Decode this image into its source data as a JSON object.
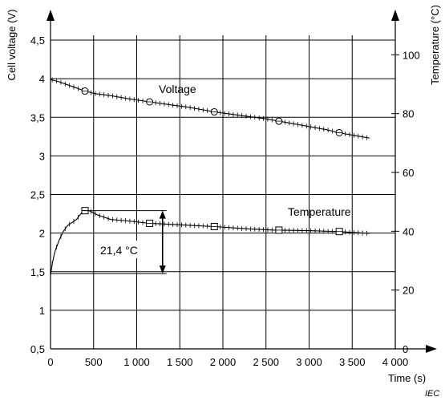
{
  "chart_data": {
    "type": "line",
    "x_axis": {
      "label": "Time  (s)",
      "range": [
        0,
        4000
      ],
      "ticks": [
        0,
        500,
        1000,
        1500,
        2000,
        2500,
        3000,
        3500,
        4000
      ],
      "tick_labels": [
        "0",
        "500",
        "1 000",
        "1 500",
        "2 000",
        "2 500",
        "3 000",
        "3 500",
        "4 000"
      ]
    },
    "y_axis_left": {
      "label": "Cell voltage  (V)",
      "range": [
        0.5,
        4.5
      ],
      "ticks": [
        0.5,
        1,
        1.5,
        2,
        2.5,
        3,
        3.5,
        4,
        4.5
      ],
      "tick_labels": [
        "0,5",
        "1",
        "1,5",
        "2",
        "2,5",
        "3",
        "3,5",
        "4",
        "4,5"
      ]
    },
    "y_axis_right": {
      "label": "Temperature  (°C)",
      "range": [
        0,
        105
      ],
      "ticks": [
        0,
        20,
        40,
        60,
        80,
        100
      ],
      "tick_labels": [
        "0",
        "20",
        "40",
        "60",
        "80",
        "100"
      ]
    },
    "grid": true,
    "series": [
      {
        "name": "Voltage",
        "axis": "left",
        "marker": "circle",
        "x": [
          0,
          100,
          200,
          300,
          400,
          500,
          700,
          900,
          1150,
          1400,
          1600,
          1900,
          2100,
          2300,
          2500,
          2650,
          2800,
          3000,
          3200,
          3350,
          3500,
          3700
        ],
        "y": [
          3.99,
          3.96,
          3.92,
          3.88,
          3.84,
          3.81,
          3.78,
          3.74,
          3.7,
          3.66,
          3.63,
          3.57,
          3.54,
          3.51,
          3.48,
          3.45,
          3.42,
          3.38,
          3.34,
          3.3,
          3.27,
          3.23
        ],
        "marker_x": [
          400,
          1150,
          1900,
          2650,
          3350
        ]
      },
      {
        "name": "Temperature",
        "axis": "right",
        "marker": "square",
        "x": [
          0,
          20,
          50,
          100,
          150,
          200,
          300,
          380,
          450,
          550,
          700,
          900,
          1150,
          1300,
          1500,
          1700,
          1900,
          2100,
          2300,
          2600,
          2800,
          3000,
          3200,
          3350,
          3500,
          3700
        ],
        "y": [
          25,
          29,
          33,
          37,
          40,
          42,
          44,
          47,
          47,
          45.5,
          44,
          43.5,
          42.7,
          42.5,
          42.2,
          41.9,
          41.6,
          41.2,
          40.8,
          40.4,
          40.3,
          40.2,
          40,
          39.9,
          39.6,
          39.3
        ],
        "marker_x": [
          400,
          1150,
          1900,
          2650,
          3350
        ]
      }
    ],
    "annotations": [
      {
        "text": "21,4 °C",
        "kind": "temperature-rise",
        "value": 21.4,
        "from": 25.6,
        "to": 47,
        "x": 1300
      }
    ],
    "source_label": "IEC"
  }
}
